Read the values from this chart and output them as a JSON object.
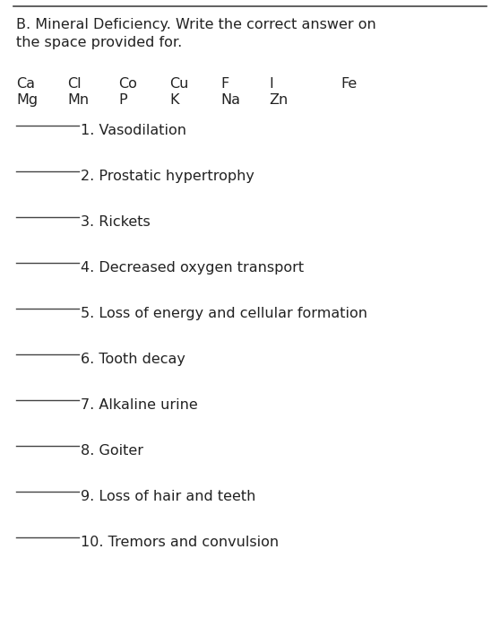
{
  "background_color": "#ffffff",
  "border_color": "#444444",
  "title_line1": "B. Mineral Deficiency. Write the correct answer on",
  "title_line2": "the space provided for.",
  "minerals_row1": [
    "Ca",
    "Cl",
    "Co",
    "Cu",
    "F",
    "I",
    "Fe"
  ],
  "minerals_row2": [
    "Mg",
    "Mn",
    "P",
    "K",
    "Na",
    "Zn"
  ],
  "items": [
    "1. Vasodilation",
    "2. Prostatic hypertrophy",
    "3. Rickets",
    "4. Decreased oxygen transport",
    "5. Loss of energy and cellular formation",
    "6. Tooth decay",
    "7. Alkaline urine",
    "8. Goiter",
    "9. Loss of hair and teeth",
    "10. Tremors and convulsion"
  ],
  "font_size_title": 11.5,
  "font_size_minerals": 11.5,
  "font_size_items": 11.5,
  "text_color": "#222222"
}
